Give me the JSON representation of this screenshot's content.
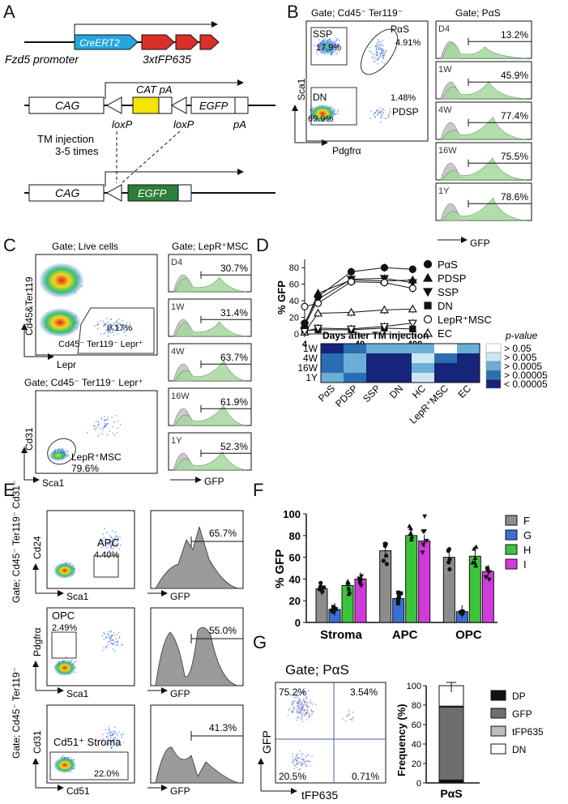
{
  "panels": [
    "A",
    "B",
    "C",
    "D",
    "E",
    "F",
    "G"
  ],
  "panel_a": {
    "promoter": "Fzd5 promoter",
    "creert2": "CreERT2",
    "reporter": "3xtFP635",
    "cag": "CAG",
    "cat_pa": "CAT pA",
    "egfp": "EGFP",
    "pa": "pA",
    "loxp": "loxP",
    "injection_line1": "TM injection",
    "injection_line2": "3-5 times"
  },
  "panel_b": {
    "gate_scatter": "Gate; Cd45⁻ Ter119⁻",
    "gate_hist": "Gate; PαS",
    "ssp_label": "SSP",
    "ssp_value": "17.9%",
    "pas_label": "PαS",
    "pas_value": "4.91%",
    "dn_label": "DN",
    "dn_value": "69.9%",
    "pdsp_value": "1.48%",
    "pdsp_label": "PDSP",
    "y_axis": "Sca1",
    "x_axis": "Pdgfrα",
    "hist_x_axis": "GFP",
    "histograms": [
      {
        "time": "D4",
        "value": "13.2%"
      },
      {
        "time": "1W",
        "value": "45.9%"
      },
      {
        "time": "4W",
        "value": "77.4%"
      },
      {
        "time": "16W",
        "value": "75.5%"
      },
      {
        "time": "1Y",
        "value": "78.6%"
      }
    ]
  },
  "panel_c": {
    "gate_top": "Gate; Live cells",
    "gate_hist": "Gate; LepR⁺MSC",
    "top_y_axis": "Cd45&Ter119",
    "top_x_axis": "Lepr",
    "top_value": "0.17%",
    "top_gate_label": "Cd45⁻ Ter119⁻ Lepr⁺",
    "gate_bottom": "Gate; Cd45⁻ Ter119⁻ Lepr⁺",
    "bottom_y_axis": "Cd31",
    "bottom_x_axis": "Sca1",
    "bottom_gate_label": "LepR⁺MSC",
    "bottom_value": "79.6%",
    "hist_x_axis": "GFP",
    "histograms": [
      {
        "time": "D4",
        "value": "30.7%"
      },
      {
        "time": "1W",
        "value": "31.4%"
      },
      {
        "time": "4W",
        "value": "63.7%"
      },
      {
        "time": "16W",
        "value": "61.9%"
      },
      {
        "time": "1Y",
        "value": "52.3%"
      }
    ]
  },
  "panel_d": {
    "heatmap_title": "Days after TM injection",
    "heatmap_rows": [
      "1W",
      "4W",
      "16W",
      "1Y"
    ],
    "heatmap_cols": [
      "PαS",
      "PDSP",
      "SSP",
      "DN",
      "HC",
      "LepR⁺MSC",
      "EC"
    ],
    "heatmap_levels": [
      [
        4,
        3,
        2,
        2,
        2,
        0,
        2
      ],
      [
        3,
        2,
        4,
        4,
        1,
        3,
        4
      ],
      [
        3,
        2,
        4,
        4,
        2,
        4,
        4
      ],
      [
        2,
        3,
        4,
        4,
        1,
        4,
        4
      ]
    ],
    "heatmap_colors": [
      "#ffffff",
      "#cde6f3",
      "#6baed6",
      "#2a6db2",
      "#16247a"
    ],
    "pvalue_title": "p-value",
    "pvalue_legend": [
      "> 0.05",
      "> 0.005",
      "> 0.0005",
      "> 0.00005",
      "< 0.00005"
    ]
  },
  "panel_e": {
    "gate_side1": "Gate; Cd45⁻ Ter119⁻ Cd31⁻",
    "gate_side2": "Gate; Cd45⁻ Ter119⁻",
    "rows": [
      {
        "y_axis": "Cd24",
        "x_axis": "Sca1",
        "gate_label": "APC",
        "gate_value": "4.40%",
        "hist_value": "65.7%"
      },
      {
        "y_axis": "Pdgfrα",
        "x_axis": "Sca1",
        "gate_label": "OPC",
        "gate_value": "2.49%",
        "hist_value": "55.0%"
      },
      {
        "y_axis": "Cd31",
        "x_axis": "Cd51",
        "gate_label": "Cd51⁺ Stroma",
        "gate_value": "22.0%",
        "hist_value": "41.3%"
      }
    ],
    "hist_x_axis": "GFP"
  },
  "panel_f": {
    "legend": [
      "F",
      "G",
      "H",
      "I"
    ],
    "legend_colors": [
      "#8c8c8c",
      "#3a6fd8",
      "#3cc43c",
      "#d23adb"
    ]
  },
  "panel_g": {
    "gate": "Gate;  PαS",
    "y_axis": "GFP",
    "x_axis": "tFP635",
    "quadrants": {
      "top_left": "75.2%",
      "top_right": "3.54%",
      "bottom_left": "20.5%",
      "bottom_right": "0.71%"
    },
    "legend": [
      "DP",
      "GFP",
      "tFP635",
      "DN"
    ],
    "legend_colors": [
      "#111111",
      "#6e6e6e",
      "#bdbdbd",
      "#ffffff"
    ]
  },
  "chart_data": [
    {
      "type": "line",
      "title": "",
      "xlabel": "Days after TM injection",
      "ylabel": "% GFP",
      "x": [
        4,
        7,
        28,
        112,
        365
      ],
      "xticks": [
        "4",
        "40",
        "400"
      ],
      "yticks": [
        "0",
        "20",
        "40",
        "60",
        "80"
      ],
      "ylim": [
        0,
        90
      ],
      "series": [
        {
          "name": "PαS",
          "marker": "filled-circle",
          "values": [
            13,
            45,
            75,
            80,
            78
          ]
        },
        {
          "name": "PDSP",
          "marker": "filled-triangle",
          "values": [
            11,
            49,
            65,
            64,
            65
          ]
        },
        {
          "name": "SSP",
          "marker": "filled-down-triangle",
          "values": [
            10,
            42,
            66,
            67,
            62
          ]
        },
        {
          "name": "DN",
          "marker": "filled-square",
          "values": [
            4,
            5,
            5,
            7,
            6
          ]
        },
        {
          "name": "LepR⁺MSC",
          "marker": "open-circle",
          "values": [
            33,
            37,
            63,
            62,
            55
          ]
        },
        {
          "name": "EC",
          "marker": "open-triangle",
          "values": [
            2,
            25,
            26,
            29,
            30
          ]
        },
        {
          "name": "HC",
          "marker": "open-down-triangle",
          "values": [
            3,
            7,
            6,
            9,
            13
          ]
        }
      ]
    },
    {
      "type": "bar",
      "title": "",
      "xlabel": "",
      "ylabel": "% GFP",
      "categories": [
        "Stroma",
        "APC",
        "OPC"
      ],
      "yticks": [
        "0",
        "20",
        "40",
        "60",
        "80",
        "100"
      ],
      "ylim": [
        0,
        100
      ],
      "series": [
        {
          "name": "F",
          "values": [
            31,
            66,
            60
          ]
        },
        {
          "name": "G",
          "values": [
            12,
            22,
            10
          ]
        },
        {
          "name": "H",
          "values": [
            34,
            80,
            61
          ]
        },
        {
          "name": "I",
          "values": [
            40,
            75,
            47
          ]
        }
      ]
    },
    {
      "type": "bar",
      "stacked": true,
      "title": "",
      "xlabel": "",
      "ylabel": "Frequency (%)",
      "categories": [
        "PαS"
      ],
      "yticks": [
        "0",
        "20",
        "40",
        "60",
        "80",
        "100"
      ],
      "ylim": [
        0,
        100
      ],
      "series": [
        {
          "name": "DP",
          "values": [
            3
          ]
        },
        {
          "name": "GFP",
          "values": [
            75
          ]
        },
        {
          "name": "tFP635",
          "values": [
            1
          ]
        },
        {
          "name": "DN",
          "values": [
            21
          ]
        }
      ]
    }
  ]
}
